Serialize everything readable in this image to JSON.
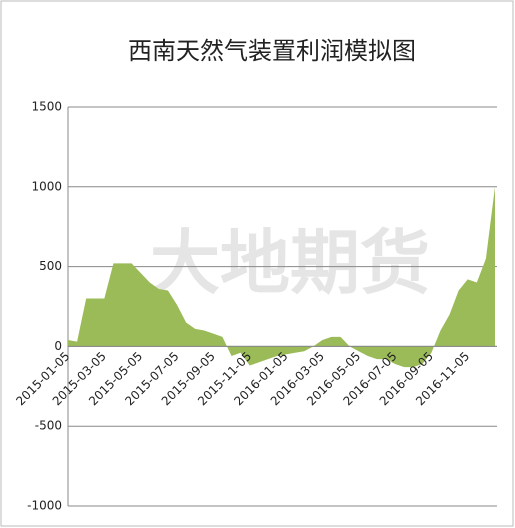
{
  "chart_data": {
    "type": "area",
    "title": "西南天然气装置利润模拟图",
    "watermark": "大地期货",
    "categories": [
      "2015-01-05",
      null,
      null,
      null,
      "2015-03-05",
      null,
      null,
      null,
      "2015-05-05",
      null,
      null,
      null,
      "2015-07-05",
      null,
      null,
      null,
      "2015-09-05",
      null,
      null,
      null,
      "2015-11-05",
      null,
      null,
      null,
      "2016-01-05",
      null,
      null,
      null,
      "2016-03-05",
      null,
      null,
      null,
      "2016-05-05",
      null,
      null,
      null,
      "2016-07-05",
      null,
      null,
      null,
      "2016-09-05",
      null,
      null,
      null,
      "2016-11-05",
      null,
      null,
      null
    ],
    "values": [
      40,
      30,
      300,
      300,
      300,
      520,
      520,
      520,
      460,
      400,
      360,
      350,
      260,
      150,
      110,
      100,
      80,
      60,
      -60,
      -40,
      -120,
      -100,
      -80,
      -60,
      -50,
      -40,
      -30,
      0,
      40,
      60,
      60,
      0,
      -30,
      -60,
      -80,
      -80,
      -110,
      -130,
      -130,
      -110,
      -40,
      100,
      200,
      350,
      420,
      400,
      550,
      1000
    ],
    "color": "#9bbb59",
    "ylim": [
      -1000,
      1500
    ],
    "yticks": [
      -1000,
      -500,
      0,
      500,
      1000,
      1500
    ],
    "grid": true
  }
}
